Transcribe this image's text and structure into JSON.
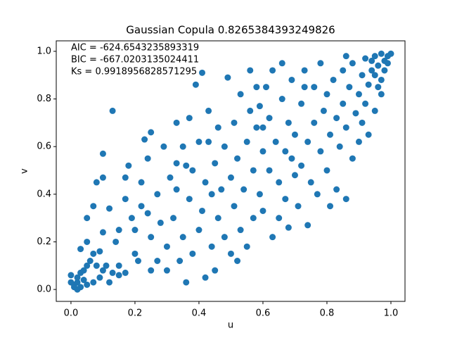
{
  "chart_data": {
    "type": "scatter",
    "title": "Gaussian Copula 0.8265384393249826",
    "annotations": [
      "AIC = -624.6543235893319",
      "BIC = -667.0203135024411",
      "Ks = 0.9918956828571295"
    ],
    "x_label": "u",
    "y_label": "v",
    "color": "#1f77b4",
    "xlim": [
      -0.046,
      1.044
    ],
    "ylim": [
      -0.05,
      1.044
    ],
    "xticks": [
      {
        "value": 0,
        "label": "0.0"
      },
      {
        "value": 0.2,
        "label": "0.2"
      },
      {
        "value": 0.4,
        "label": "0.4"
      },
      {
        "value": 0.6,
        "label": "0.6"
      },
      {
        "value": 0.8,
        "label": "0.8"
      },
      {
        "value": 1,
        "label": "1.0"
      }
    ],
    "yticks": [
      {
        "value": 0,
        "label": "0.0"
      },
      {
        "value": 0.2,
        "label": "0.2"
      },
      {
        "value": 0.4,
        "label": "0.4"
      },
      {
        "value": 0.6,
        "label": "0.6"
      },
      {
        "value": 0.8,
        "label": "0.8"
      },
      {
        "value": 1,
        "label": "1.0"
      }
    ],
    "x": [
      0.01,
      0.02,
      0.03,
      0.0,
      0.02,
      0.04,
      0.01,
      0.03,
      0.05,
      0.02,
      0.0,
      0.04,
      0.06,
      0.08,
      0.03,
      0.05,
      0.07,
      0.09,
      0.1,
      0.12,
      0.11,
      0.13,
      0.05,
      0.07,
      0.08,
      0.1,
      0.1,
      0.12,
      0.1,
      0.09,
      0.13,
      0.14,
      0.15,
      0.15,
      0.17,
      0.17,
      0.17,
      0.18,
      0.19,
      0.2,
      0.21,
      0.22,
      0.22,
      0.23,
      0.24,
      0.25,
      0.25,
      0.25,
      0.27,
      0.28,
      0.29,
      0.3,
      0.3,
      0.31,
      0.32,
      0.33,
      0.33,
      0.34,
      0.35,
      0.35,
      0.36,
      0.37,
      0.37,
      0.38,
      0.38,
      0.39,
      0.4,
      0.4,
      0.41,
      0.41,
      0.42,
      0.42,
      0.43,
      0.44,
      0.44,
      0.45,
      0.46,
      0.46,
      0.47,
      0.48,
      0.48,
      0.49,
      0.5,
      0.5,
      0.51,
      0.51,
      0.52,
      0.53,
      0.53,
      0.54,
      0.55,
      0.55,
      0.56,
      0.56,
      0.57,
      0.57,
      0.58,
      0.59,
      0.59,
      0.6,
      0.6,
      0.61,
      0.62,
      0.62,
      0.63,
      0.63,
      0.64,
      0.65,
      0.65,
      0.66,
      0.67,
      0.67,
      0.68,
      0.68,
      0.69,
      0.7,
      0.7,
      0.71,
      0.72,
      0.72,
      0.73,
      0.74,
      0.74,
      0.75,
      0.76,
      0.76,
      0.77,
      0.78,
      0.78,
      0.79,
      0.8,
      0.8,
      0.81,
      0.81,
      0.82,
      0.83,
      0.83,
      0.84,
      0.85,
      0.85,
      0.86,
      0.86,
      0.87,
      0.88,
      0.88,
      0.89,
      0.9,
      0.9,
      0.91,
      0.91,
      0.92,
      0.92,
      0.93,
      0.93,
      0.94,
      0.95,
      0.95,
      0.96,
      0.96,
      0.97,
      0.97,
      0.98,
      0.98,
      0.99,
      0.99,
      0.97,
      1.0,
      0.95,
      0.94,
      0.15,
      0.2,
      0.27,
      0.33,
      0.45,
      0.05,
      0.07,
      0.24,
      0.36,
      0.43,
      0.58,
      0.66,
      0.73,
      0.86,
      0.52,
      0.6,
      0.69
    ],
    "values": [
      0.02,
      0.05,
      0.01,
      0.06,
      0.03,
      0.04,
      0.01,
      0.07,
      0.02,
      0.0,
      0.03,
      0.08,
      0.12,
      0.1,
      0.17,
      0.2,
      0.15,
      0.05,
      0.08,
      0.03,
      0.1,
      0.07,
      0.3,
      0.35,
      0.45,
      0.57,
      0.47,
      0.34,
      0.24,
      0.16,
      0.75,
      0.2,
      0.25,
      0.1,
      0.07,
      0.38,
      0.47,
      0.52,
      0.3,
      0.15,
      0.12,
      0.35,
      0.45,
      0.63,
      0.55,
      0.66,
      0.08,
      0.22,
      0.4,
      0.28,
      0.6,
      0.18,
      0.08,
      0.47,
      0.3,
      0.7,
      0.53,
      0.12,
      0.6,
      0.22,
      0.03,
      0.38,
      0.72,
      0.15,
      0.5,
      0.86,
      0.25,
      0.62,
      0.33,
      0.91,
      0.05,
      0.45,
      0.75,
      0.4,
      0.18,
      0.53,
      0.3,
      0.68,
      0.42,
      0.22,
      0.6,
      0.89,
      0.47,
      0.15,
      0.35,
      0.7,
      0.55,
      0.82,
      0.25,
      0.42,
      0.62,
      0.18,
      0.92,
      0.75,
      0.3,
      0.5,
      0.68,
      0.4,
      0.77,
      0.33,
      0.58,
      0.85,
      0.5,
      0.72,
      0.22,
      0.92,
      0.62,
      0.45,
      0.3,
      0.8,
      0.58,
      0.38,
      0.7,
      0.26,
      0.88,
      0.48,
      0.65,
      0.35,
      0.78,
      0.52,
      0.92,
      0.27,
      0.62,
      0.45,
      0.85,
      0.7,
      0.4,
      0.95,
      0.58,
      0.75,
      0.82,
      0.5,
      0.35,
      0.65,
      0.88,
      0.72,
      0.42,
      0.6,
      0.92,
      0.78,
      0.38,
      0.68,
      0.85,
      0.55,
      0.95,
      0.74,
      0.82,
      0.62,
      0.9,
      0.7,
      0.97,
      0.78,
      0.86,
      0.65,
      0.92,
      0.75,
      0.98,
      0.85,
      0.94,
      0.99,
      0.88,
      0.96,
      0.92,
      0.98,
      0.95,
      0.82,
      0.99,
      0.9,
      0.96,
      0.06,
      0.25,
      0.12,
      0.42,
      0.08,
      0.1,
      0.03,
      0.32,
      0.52,
      0.62,
      0.85,
      0.95,
      0.85,
      0.98,
      0.12,
      0.68,
      0.55
    ]
  }
}
